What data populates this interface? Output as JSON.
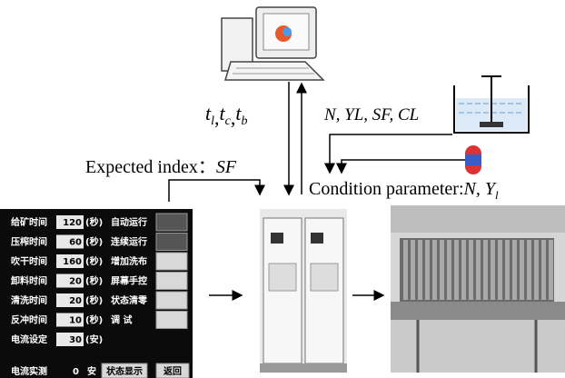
{
  "computer_link": {
    "symbols": [
      {
        "base": "t",
        "sub": "l"
      },
      {
        "base": "t",
        "sub": "c"
      },
      {
        "base": "t",
        "sub": "b"
      }
    ],
    "separator": ","
  },
  "sensor_params": "N, YL, SF, CL",
  "expected_index": {
    "label": "Expected index：",
    "symbol": "SF"
  },
  "condition_parameter": {
    "label": "Condition parameter:",
    "symbols": "N, Y",
    "sub": "l"
  },
  "panel": {
    "rows": [
      {
        "label": "给矿时间",
        "value": "120",
        "unit": "(秒)",
        "button": "自动运行"
      },
      {
        "label": "压榨时间",
        "value": "60",
        "unit": "(秒)",
        "button": "连续运行"
      },
      {
        "label": "吹干时间",
        "value": "160",
        "unit": "(秒)",
        "button": "增加洗布"
      },
      {
        "label": "卸料时间",
        "value": "20",
        "unit": "(秒)",
        "button": "屏幕手控"
      },
      {
        "label": "清洗时间",
        "value": "20",
        "unit": "(秒)",
        "button": "状态清零"
      },
      {
        "label": "反冲时间",
        "value": "10",
        "unit": "(秒)",
        "button": "调 试"
      },
      {
        "label": "电流设定",
        "value": "30",
        "unit": "(安)"
      }
    ],
    "footer": {
      "label": "电流实测",
      "value": "0",
      "unit": "安",
      "buttons": [
        "状态显示",
        "返回"
      ]
    }
  }
}
